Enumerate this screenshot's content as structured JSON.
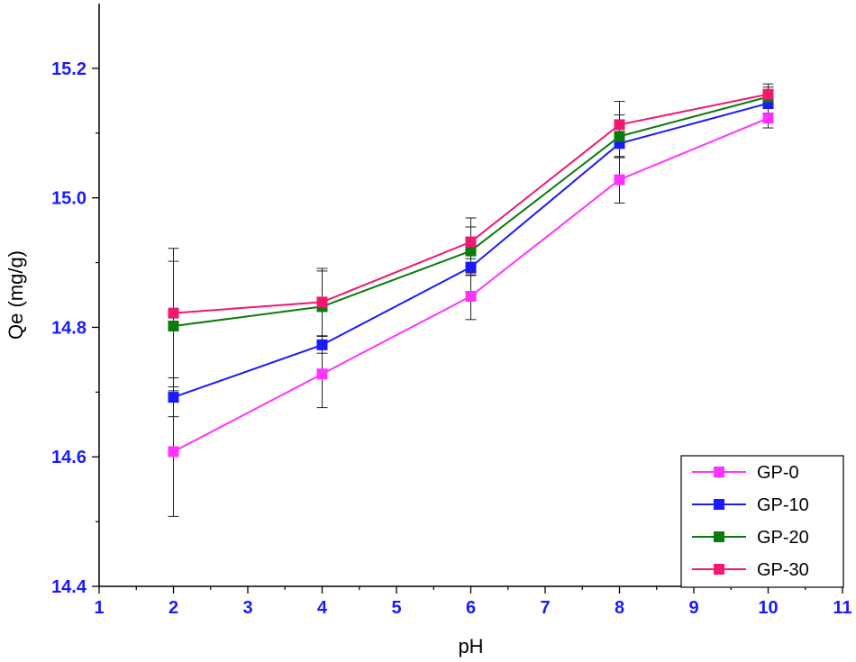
{
  "chart_data": {
    "type": "line",
    "xlabel": "pH",
    "ylabel": "Qe (mg/g)",
    "xlim": [
      1,
      11
    ],
    "ylim": [
      14.4,
      15.3
    ],
    "x_ticks": [
      "1",
      "2",
      "3",
      "4",
      "5",
      "6",
      "7",
      "8",
      "9",
      "10",
      "11"
    ],
    "y_ticks": [
      "14.4",
      "14.6",
      "14.8",
      "15.0",
      "15.2"
    ],
    "x": [
      2,
      4,
      6,
      8,
      10
    ],
    "series": [
      {
        "name": "GP-0",
        "color": "#ff33ff",
        "values": [
          14.608,
          14.728,
          14.848,
          15.028,
          15.123
        ],
        "errors": [
          0.1,
          0.052,
          0.036,
          0.036,
          0.015
        ]
      },
      {
        "name": "GP-10",
        "color": "#1a1aff",
        "values": [
          14.692,
          14.773,
          14.893,
          15.084,
          15.146
        ],
        "errors": [
          0.03,
          0.013,
          0.013,
          0.022,
          0.015
        ]
      },
      {
        "name": "GP-20",
        "color": "#0a7a0a",
        "values": [
          14.802,
          14.832,
          14.918,
          15.095,
          15.156
        ],
        "errors": [
          0.1,
          0.055,
          0.037,
          0.033,
          0.015
        ]
      },
      {
        "name": "GP-30",
        "color": "#f2176f",
        "values": [
          14.822,
          14.839,
          14.932,
          15.113,
          15.16
        ],
        "errors": [
          0.1,
          0.052,
          0.037,
          0.036,
          0.016
        ]
      }
    ],
    "grid": false,
    "legend_position": "bottom-right"
  }
}
